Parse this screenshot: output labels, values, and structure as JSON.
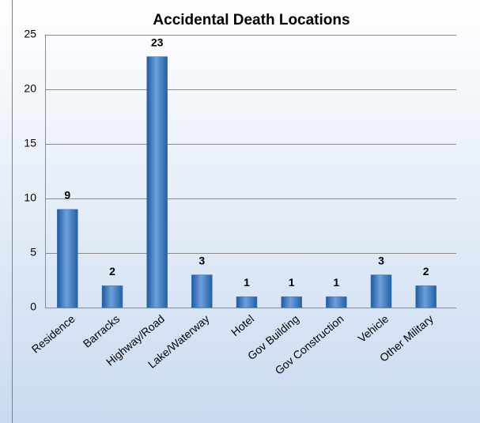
{
  "chart_data": {
    "type": "bar",
    "title": "Accidental Death Locations",
    "categories": [
      "Residence",
      "Barracks",
      "Highway/Road",
      "Lake/Waterway",
      "Hotel",
      "Gov Building",
      "Gov Construction",
      "Vehicle",
      "Other Military"
    ],
    "values": [
      9,
      2,
      23,
      3,
      1,
      1,
      1,
      3,
      2
    ],
    "color": "#3a78c0",
    "ylim": [
      0,
      25
    ],
    "yticks": [
      0,
      5,
      10,
      15,
      20,
      25
    ],
    "grid": true
  }
}
